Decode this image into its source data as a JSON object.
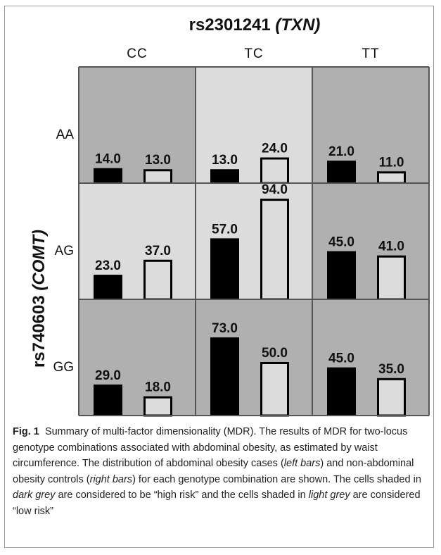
{
  "chart_data": {
    "type": "bar",
    "title": "rs2301241",
    "title_gene": "(TXN)",
    "ylabel": "rs740603",
    "ylabel_gene": "(COMT)",
    "columns": [
      "CC",
      "TC",
      "TT"
    ],
    "rows": [
      "AA",
      "AG",
      "GG"
    ],
    "series": [
      {
        "role": "cases",
        "color": "#000000"
      },
      {
        "role": "controls",
        "color": "#dcdcdc"
      }
    ],
    "cells": [
      {
        "row": "AA",
        "col": "CC",
        "risk": "high",
        "cases": 14.0,
        "controls": 13.0
      },
      {
        "row": "AA",
        "col": "TC",
        "risk": "low",
        "cases": 13.0,
        "controls": 24.0
      },
      {
        "row": "AA",
        "col": "TT",
        "risk": "high",
        "cases": 21.0,
        "controls": 11.0
      },
      {
        "row": "AG",
        "col": "CC",
        "risk": "low",
        "cases": 23.0,
        "controls": 37.0
      },
      {
        "row": "AG",
        "col": "TC",
        "risk": "low",
        "cases": 57.0,
        "controls": 94.0
      },
      {
        "row": "AG",
        "col": "TT",
        "risk": "high",
        "cases": 45.0,
        "controls": 41.0
      },
      {
        "row": "GG",
        "col": "CC",
        "risk": "high",
        "cases": 29.0,
        "controls": 18.0
      },
      {
        "row": "GG",
        "col": "TC",
        "risk": "high",
        "cases": 73.0,
        "controls": 50.0
      },
      {
        "row": "GG",
        "col": "TT",
        "risk": "high",
        "cases": 45.0,
        "controls": 35.0
      }
    ],
    "colors": {
      "high_risk": "#b0b0b0",
      "low_risk": "#dcdcdc",
      "grid_line": "#555555"
    }
  },
  "caption": {
    "fig": "Fig. 1",
    "parts": [
      {
        "t": "Summary of multi-factor dimensionality (MDR). The results of MDR for two-locus genotype combinations associated with abdominal obesity, as estimated by waist circumference. The distribution of abdominal obesity cases (",
        "i": false
      },
      {
        "t": "left bars",
        "i": true
      },
      {
        "t": ") and non-abdominal obesity controls (",
        "i": false
      },
      {
        "t": "right bars",
        "i": true
      },
      {
        "t": ") for each genotype combination are shown. The cells shaded in ",
        "i": false
      },
      {
        "t": "dark grey",
        "i": true
      },
      {
        "t": " are considered to be “high risk” and the cells shaded in ",
        "i": false
      },
      {
        "t": "light grey",
        "i": true
      },
      {
        "t": " are considered “low risk”",
        "i": false
      }
    ]
  }
}
